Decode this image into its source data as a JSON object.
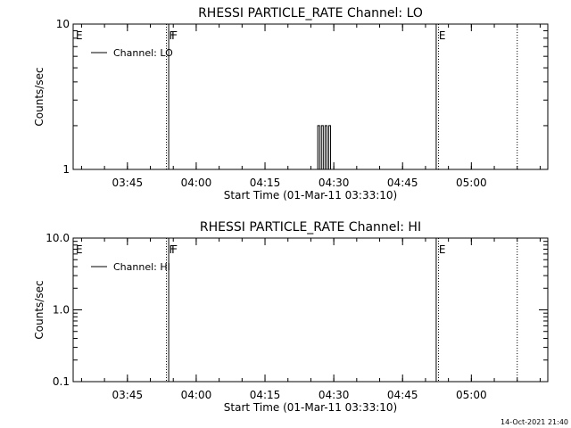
{
  "timestamp": "14-Oct-2021 21:40",
  "chart_data": [
    {
      "type": "line",
      "title": "RHESSI PARTICLE_RATE Channel: LO",
      "xlabel": "Start Time (01-Mar-11 03:33:10)",
      "ylabel": "Counts/sec",
      "x_ticks": [
        "03:45",
        "04:00",
        "04:15",
        "04:30",
        "04:45",
        "05:00"
      ],
      "x_range": [
        "03:33:10",
        "05:16:40"
      ],
      "y_scale": "log",
      "ylim": [
        1,
        10
      ],
      "y_tick_labels": [
        "1",
        "10"
      ],
      "grid": false,
      "legend": {
        "position": "top-left",
        "entries": [
          "Channel: LO"
        ]
      },
      "markers": [
        {
          "label": "E",
          "time": "03:33:10",
          "style": "solid"
        },
        {
          "label": "F",
          "time": "03:53:30",
          "style": "dotted"
        },
        {
          "label": "F",
          "time": "03:54:00",
          "style": "solid"
        },
        {
          "label": "E",
          "time": "04:52:20",
          "style": "solid"
        },
        {
          "label": "",
          "time": "04:52:50",
          "style": "dotted"
        },
        {
          "label": "",
          "time": "05:10:00",
          "style": "dotted"
        }
      ],
      "series": [
        {
          "values": [
            [
              "04:26:30",
              1
            ],
            [
              "04:26:30",
              2
            ],
            [
              "04:26:54",
              2
            ],
            [
              "04:26:54",
              1
            ],
            [
              "04:27:18",
              1
            ],
            [
              "04:27:18",
              2
            ],
            [
              "04:27:42",
              2
            ],
            [
              "04:27:42",
              1
            ],
            [
              "04:28:06",
              1
            ],
            [
              "04:28:06",
              2
            ],
            [
              "04:28:30",
              2
            ],
            [
              "04:28:30",
              1
            ],
            [
              "04:28:54",
              1
            ],
            [
              "04:28:54",
              2
            ],
            [
              "04:29:18",
              2
            ],
            [
              "04:29:18",
              1
            ]
          ]
        }
      ]
    },
    {
      "type": "line",
      "title": "RHESSI PARTICLE_RATE Channel: HI",
      "xlabel": "Start Time (01-Mar-11 03:33:10)",
      "ylabel": "Counts/sec",
      "x_ticks": [
        "03:45",
        "04:00",
        "04:15",
        "04:30",
        "04:45",
        "05:00"
      ],
      "x_range": [
        "03:33:10",
        "05:16:40"
      ],
      "y_scale": "log",
      "ylim": [
        0.1,
        10
      ],
      "y_tick_labels": [
        "0.1",
        "1.0",
        "10.0"
      ],
      "grid": false,
      "legend": {
        "position": "top-left",
        "entries": [
          "Channel: HI"
        ]
      },
      "markers": [
        {
          "label": "E",
          "time": "03:33:10",
          "style": "solid"
        },
        {
          "label": "F",
          "time": "03:53:30",
          "style": "dotted"
        },
        {
          "label": "F",
          "time": "03:54:00",
          "style": "solid"
        },
        {
          "label": "E",
          "time": "04:52:20",
          "style": "solid"
        },
        {
          "label": "",
          "time": "04:52:50",
          "style": "dotted"
        },
        {
          "label": "",
          "time": "05:10:00",
          "style": "dotted"
        }
      ],
      "series": [
        {
          "values": []
        }
      ]
    }
  ]
}
